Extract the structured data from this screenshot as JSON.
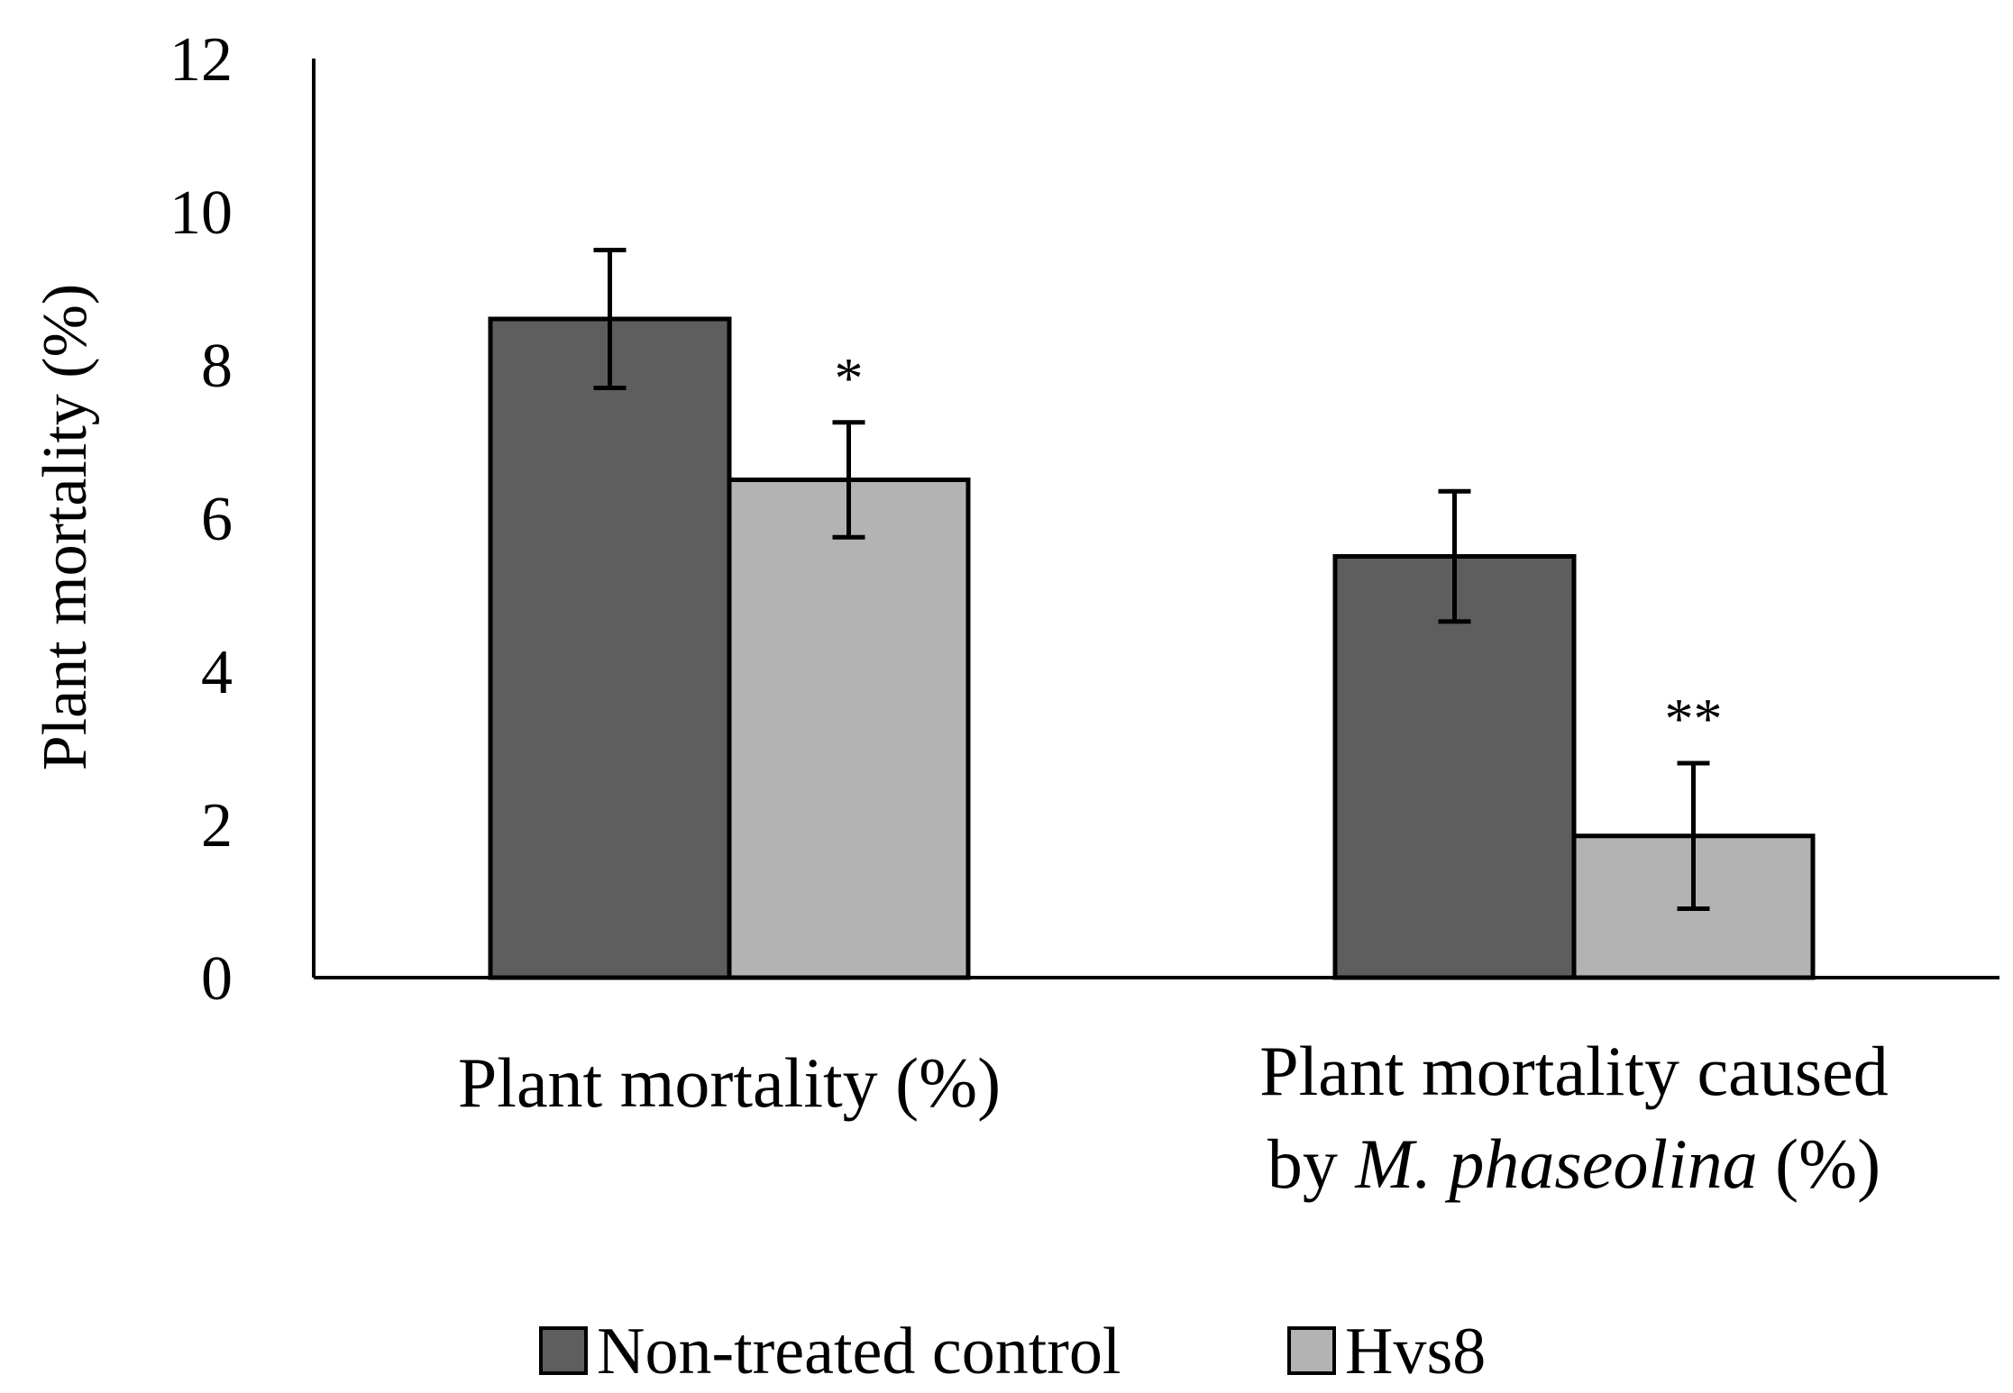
{
  "chart_data": {
    "type": "bar",
    "title": "",
    "xlabel": "",
    "ylabel": "Plant mortality (%)",
    "ylim": [
      0,
      12
    ],
    "yticks": [
      0,
      2,
      4,
      6,
      8,
      10,
      12
    ],
    "ytick_labels": [
      "0",
      "2",
      "4",
      "6",
      "8",
      "10",
      "12"
    ],
    "grid": false,
    "legend_position": "bottom",
    "categories": [
      {
        "line1": "Plant mortality (%)",
        "line2_pre": "",
        "line2_italic": "",
        "line2_post": ""
      },
      {
        "line1": "Plant mortality caused",
        "line2_pre": "by ",
        "line2_italic": "M. phaseolina",
        "line2_post": " (%)"
      }
    ],
    "series": [
      {
        "name": "Non-treated control",
        "color": "#5e5e5e",
        "values": [
          8.6,
          5.5
        ],
        "errors": [
          0.9,
          0.85
        ],
        "significance": [
          "",
          ""
        ]
      },
      {
        "name": "Hvs8",
        "color": "#b3b3b3",
        "values": [
          6.5,
          1.85
        ],
        "errors": [
          0.75,
          0.95
        ],
        "significance": [
          "*",
          "**"
        ]
      }
    ]
  }
}
